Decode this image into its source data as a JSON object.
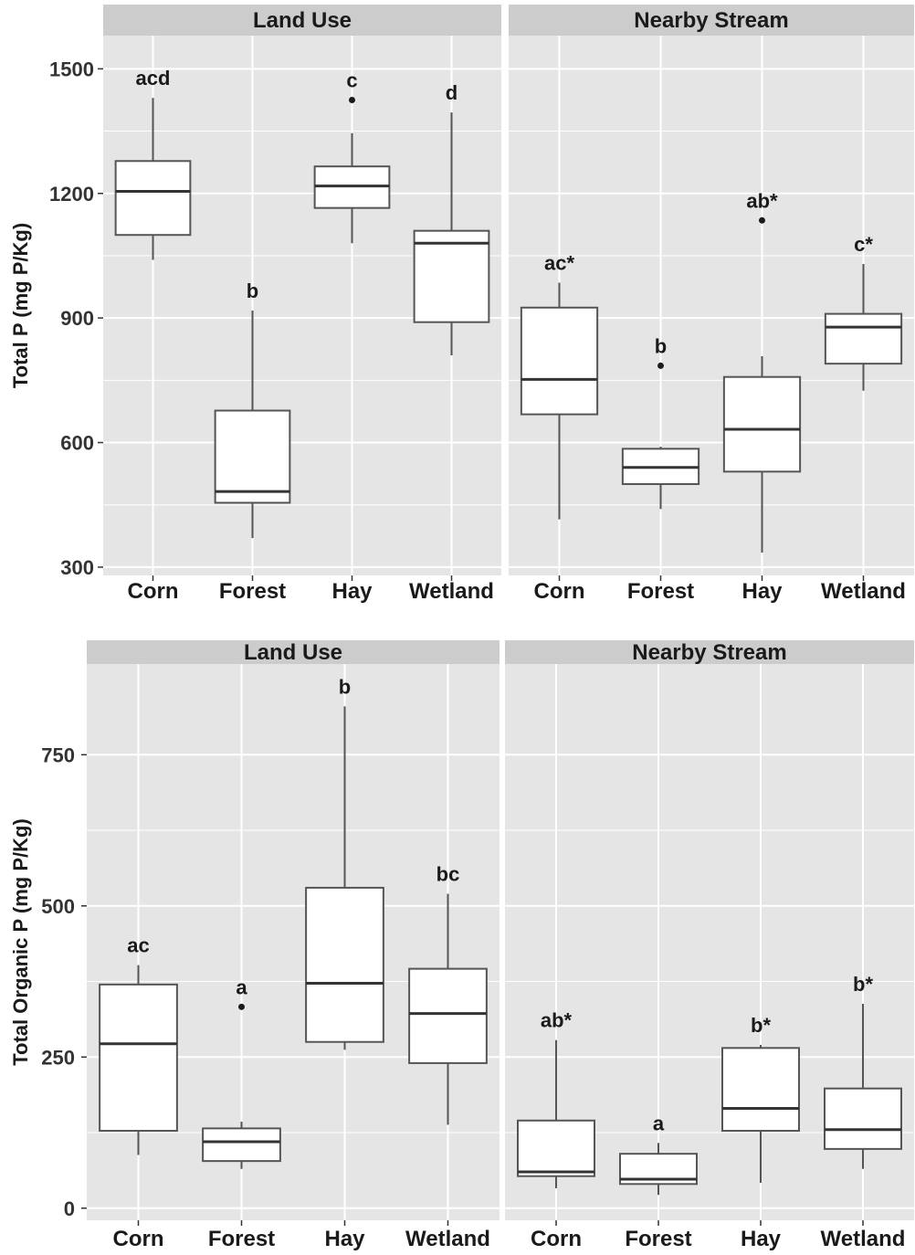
{
  "colors": {
    "panel_bg": "#e5e5e5",
    "strip_bg": "#cccccc",
    "grid": "#ffffff",
    "box_fill": "#ffffff",
    "box_stroke": "#555555",
    "text": "#1a1a1a"
  },
  "chart_data": [
    {
      "type": "box",
      "ylabel": "Total P (mg P/Kg)",
      "ylim": [
        280,
        1580
      ],
      "yticks": [
        300,
        600,
        900,
        1200,
        1500
      ],
      "categories": [
        "Corn",
        "Forest",
        "Hay",
        "Wetland"
      ],
      "grid": true,
      "facets": [
        {
          "title": "Land Use",
          "boxes": [
            {
              "category": "Corn",
              "min": 1040,
              "q1": 1100,
              "median": 1205,
              "q3": 1278,
              "max": 1430,
              "outliers": [],
              "label": "acd"
            },
            {
              "category": "Forest",
              "min": 370,
              "q1": 455,
              "median": 482,
              "q3": 677,
              "max": 918,
              "outliers": [],
              "label": "b"
            },
            {
              "category": "Hay",
              "min": 1080,
              "q1": 1165,
              "median": 1218,
              "q3": 1265,
              "max": 1345,
              "outliers": [
                1425
              ],
              "label": "c"
            },
            {
              "category": "Wetland",
              "min": 810,
              "q1": 890,
              "median": 1080,
              "q3": 1110,
              "max": 1395,
              "outliers": [],
              "label": "d"
            }
          ]
        },
        {
          "title": "Nearby Stream",
          "boxes": [
            {
              "category": "Corn",
              "min": 415,
              "q1": 668,
              "median": 752,
              "q3": 925,
              "max": 985,
              "outliers": [],
              "label": "ac*"
            },
            {
              "category": "Forest",
              "min": 440,
              "q1": 500,
              "median": 540,
              "q3": 585,
              "max": 590,
              "outliers": [
                785
              ],
              "label": "b"
            },
            {
              "category": "Hay",
              "min": 335,
              "q1": 530,
              "median": 632,
              "q3": 758,
              "max": 808,
              "outliers": [
                1135
              ],
              "label": "ab*"
            },
            {
              "category": "Wetland",
              "min": 725,
              "q1": 790,
              "median": 878,
              "q3": 910,
              "max": 1030,
              "outliers": [],
              "label": "c*"
            }
          ]
        }
      ]
    },
    {
      "type": "box",
      "ylabel": "Total Organic P (mg P/Kg)",
      "ylim": [
        -20,
        900
      ],
      "yticks": [
        0,
        250,
        500,
        750
      ],
      "categories": [
        "Corn",
        "Forest",
        "Hay",
        "Wetland"
      ],
      "grid": true,
      "facets": [
        {
          "title": "Land Use",
          "boxes": [
            {
              "category": "Corn",
              "min": 88,
              "q1": 128,
              "median": 272,
              "q3": 370,
              "max": 402,
              "outliers": [],
              "label": "ac"
            },
            {
              "category": "Forest",
              "min": 65,
              "q1": 78,
              "median": 110,
              "q3": 132,
              "max": 143,
              "outliers": [
                333
              ],
              "label": "a"
            },
            {
              "category": "Hay",
              "min": 262,
              "q1": 275,
              "median": 372,
              "q3": 530,
              "max": 830,
              "outliers": [],
              "label": "b"
            },
            {
              "category": "Wetland",
              "min": 138,
              "q1": 240,
              "median": 322,
              "q3": 396,
              "max": 520,
              "outliers": [],
              "label": "bc"
            }
          ]
        },
        {
          "title": "Nearby Stream",
          "boxes": [
            {
              "category": "Corn",
              "min": 33,
              "q1": 53,
              "median": 60,
              "q3": 145,
              "max": 278,
              "outliers": [],
              "label": "ab*"
            },
            {
              "category": "Forest",
              "min": 22,
              "q1": 40,
              "median": 48,
              "q3": 90,
              "max": 108,
              "outliers": [],
              "label": "a"
            },
            {
              "category": "Hay",
              "min": 42,
              "q1": 128,
              "median": 165,
              "q3": 265,
              "max": 270,
              "outliers": [],
              "label": "b*"
            },
            {
              "category": "Wetland",
              "min": 65,
              "q1": 98,
              "median": 130,
              "q3": 198,
              "max": 338,
              "outliers": [],
              "label": "b*"
            }
          ]
        }
      ]
    }
  ]
}
